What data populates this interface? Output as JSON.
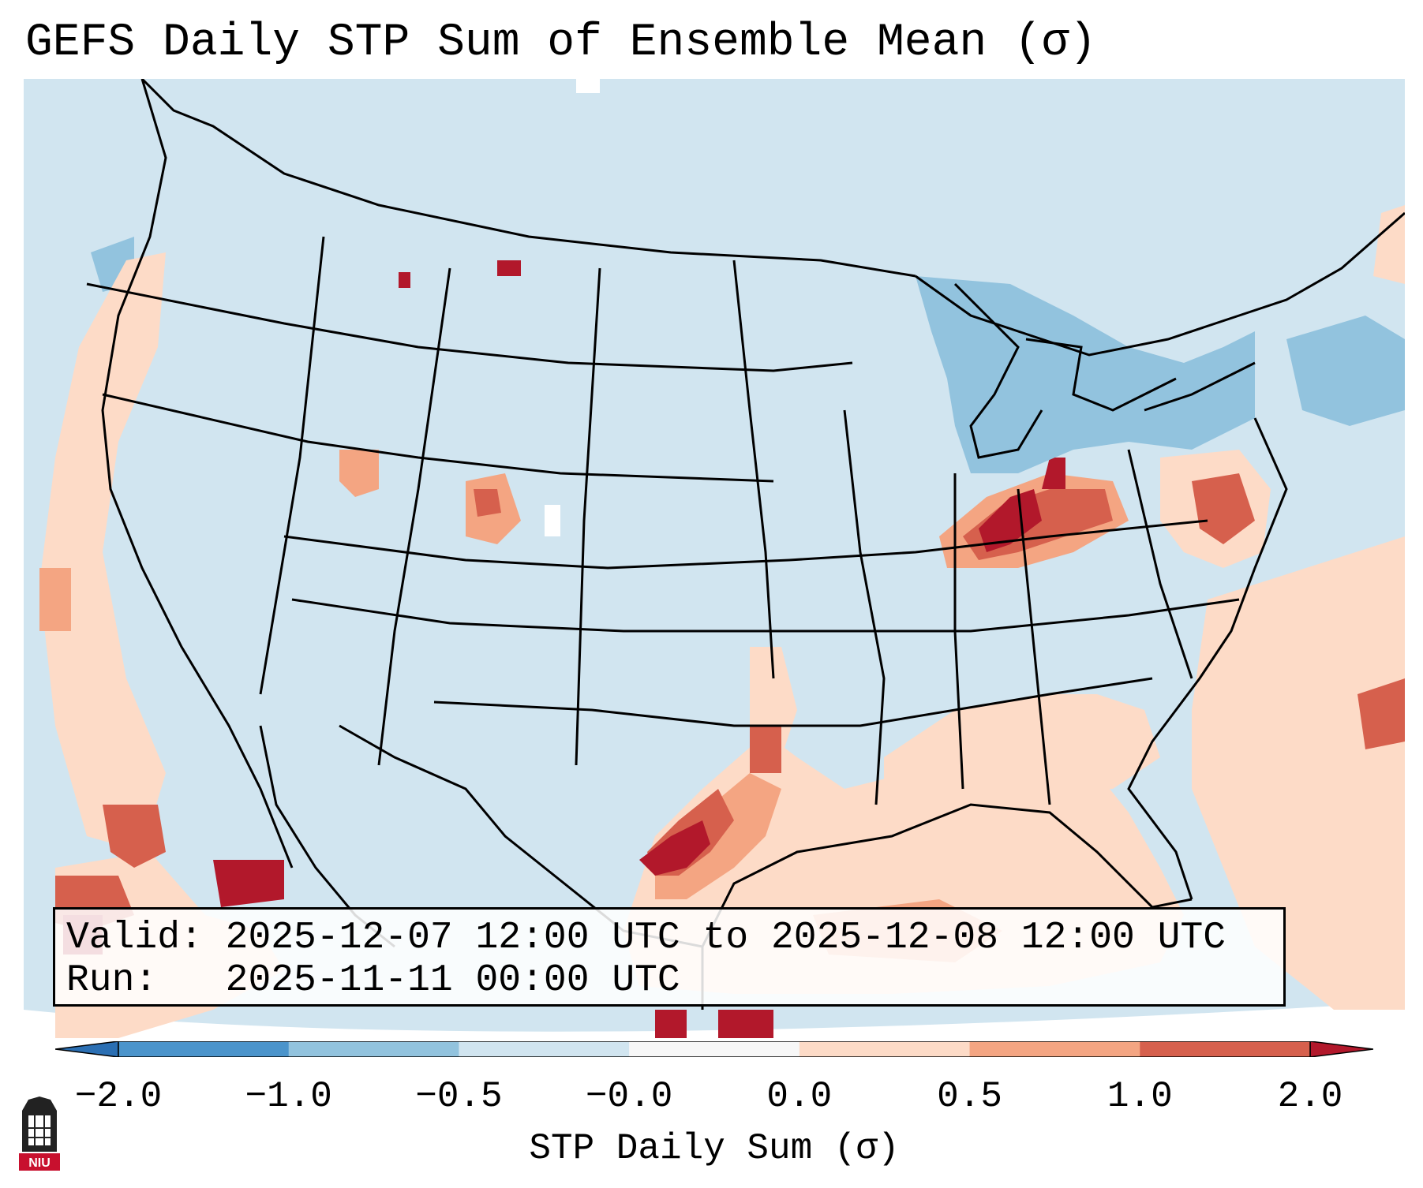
{
  "title": "GEFS Daily STP Sum of Ensemble Mean (σ)",
  "info": {
    "valid_label": "Valid:",
    "valid_value": "2025-12-07 12:00 UTC to 2025-12-08 12:00 UTC",
    "run_label": "Run:",
    "run_value": "2025-11-11 00:00 UTC"
  },
  "colorbar": {
    "label": "STP Daily Sum (σ)",
    "tick_labels": [
      "−2.0",
      "−1.0",
      "−0.5",
      "−0.0",
      "0.0",
      "0.5",
      "1.0",
      "2.0"
    ],
    "colors": [
      "#2b6fb3",
      "#4b94cb",
      "#92c3de",
      "#d1e5f0",
      "#f7f7f7",
      "#fddbc7",
      "#f4a582",
      "#d6604d",
      "#b2182b",
      "#b2182b"
    ]
  },
  "map": {
    "ocean_color": "#d1e5f0",
    "border_color": "#000000",
    "anomaly_colors": {
      "neg_weak": "#d1e5f0",
      "neg_mod": "#92c3de",
      "neg_strong": "#6aa9d4",
      "near_zero": "#ffffff",
      "pos_weak": "#fddbc7",
      "pos_mod": "#f4a582",
      "pos_strong": "#d6604d",
      "pos_max": "#b2182b"
    }
  },
  "logo": {
    "text": "NIU",
    "color": "#c8102e"
  }
}
